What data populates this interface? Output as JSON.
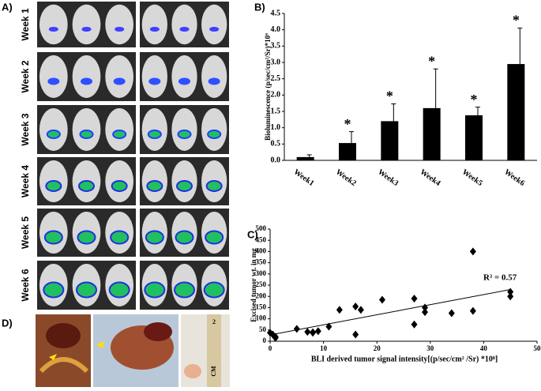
{
  "panels": {
    "A": {
      "label": "A)",
      "weeks": [
        "Week 1",
        "Week 2",
        "Week 3",
        "Week 4",
        "Week 5",
        "Week 6"
      ]
    },
    "B": {
      "label": "B)"
    },
    "C": {
      "label": "C)"
    },
    "D": {
      "label": "D)",
      "ruler_labels": [
        "2",
        "CM"
      ]
    }
  },
  "chart_data": [
    {
      "type": "bar",
      "ylabel": "Bioluminescence  (p/sec/cm²/Sr)*10⁹",
      "categories": [
        "Week1",
        "Week2",
        "Week3",
        "Week4",
        "Week5",
        "Week6"
      ],
      "values": [
        0.1,
        0.53,
        1.2,
        1.6,
        1.38,
        2.95
      ],
      "errors": [
        0.07,
        0.35,
        0.53,
        1.2,
        0.25,
        1.1
      ],
      "significance": [
        null,
        "*",
        "*",
        "*",
        "*",
        "*"
      ],
      "color": "#000000",
      "ylim": [
        0,
        4.5
      ],
      "yticks": [
        {
          "value": 0,
          "label": "0.0"
        },
        0.5,
        {
          "value": 1,
          "label": "1.0"
        },
        1.5,
        {
          "value": 2,
          "label": "2.0"
        },
        2.5,
        {
          "value": 3,
          "label": "3.0"
        },
        3.5,
        {
          "value": 4,
          "label": "4.0"
        },
        4.5
      ]
    },
    {
      "type": "scatter",
      "xlabel": "BLI derived tumor signal intensity[(p/sec/cm² /Sr) *10⁸]",
      "ylabel": "Excised tumor  wt. in mg",
      "x": [
        0,
        0.5,
        1,
        1,
        5,
        7,
        8,
        8,
        9,
        11,
        13,
        16,
        16,
        17,
        21,
        27,
        27,
        29,
        29,
        34,
        38,
        38,
        45,
        45
      ],
      "y": [
        38,
        30,
        20,
        15,
        55,
        42,
        40,
        38,
        45,
        65,
        140,
        155,
        30,
        140,
        185,
        190,
        75,
        150,
        130,
        125,
        400,
        135,
        220,
        200
      ],
      "color": "#000000",
      "trendline": {
        "intercept": 28,
        "slope": 4.5
      },
      "annotation": "R² = 0.57",
      "xlim": [
        0,
        50
      ],
      "xticks": [
        0,
        10,
        20,
        30,
        40,
        50
      ],
      "ylim": [
        0,
        500
      ],
      "yticks": [
        0,
        50,
        100,
        150,
        200,
        250,
        300,
        350,
        400,
        450,
        500
      ]
    }
  ]
}
